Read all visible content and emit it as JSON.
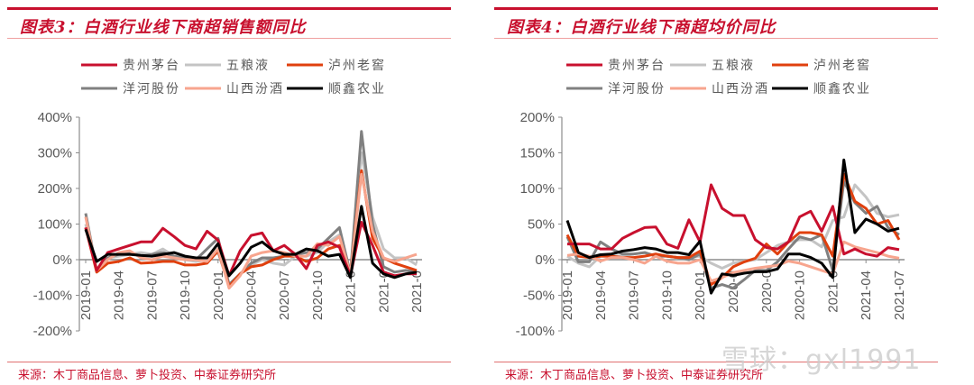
{
  "legend_labels": [
    "贵州茅台",
    "五粮液",
    "泸州老窖",
    "洋河股份",
    "山西汾酒",
    "顺鑫农业"
  ],
  "series_colors": {
    "贵州茅台": "#c8102e",
    "五粮液": "#c4c4c4",
    "泸州老窖": "#e0400e",
    "洋河股份": "#808080",
    "山西汾酒": "#f7a58e",
    "顺鑫农业": "#000000"
  },
  "watermark": "雪球：gxl1991",
  "chart_data": [
    {
      "type": "line",
      "title": "图表3：白酒行业线下商超销售额同比",
      "source": "来源：木丁商品信息、萝卜投资、中泰证券研究所",
      "x_range": [
        "2019-01",
        "2021-07"
      ],
      "x_ticks": [
        "2019-01",
        "2019-04",
        "2019-07",
        "2019-10",
        "2020-01",
        "2020-04",
        "2020-07",
        "2020-10",
        "2021-0",
        "2021-0",
        "2021-0"
      ],
      "ylim": [
        -200,
        400
      ],
      "y_ticks": [
        "400%",
        "300%",
        "200%",
        "100%",
        "0%",
        "-100%",
        "-200%"
      ],
      "y_tick_values": [
        400,
        300,
        200,
        100,
        0,
        -100,
        -200
      ],
      "legend": "top",
      "grid": false,
      "series": [
        {
          "name": "五粮液",
          "values": [
            100,
            -35,
            5,
            10,
            15,
            20,
            15,
            30,
            10,
            0,
            -5,
            0,
            20,
            -70,
            -40,
            -15,
            0,
            -10,
            -15,
            10,
            10,
            20,
            50,
            70,
            -45,
            300,
            120,
            30,
            5,
            5,
            -15
          ]
        },
        {
          "name": "洋河股份",
          "values": [
            130,
            -30,
            5,
            15,
            20,
            10,
            15,
            20,
            10,
            5,
            0,
            30,
            60,
            -70,
            -40,
            -10,
            5,
            5,
            10,
            15,
            20,
            30,
            60,
            90,
            -40,
            360,
            100,
            -20,
            -35,
            -30,
            -35
          ]
        },
        {
          "name": "泸州老窖",
          "values": [
            90,
            -35,
            -10,
            -5,
            5,
            -10,
            -8,
            -5,
            -5,
            -15,
            -15,
            -10,
            25,
            -75,
            -40,
            -20,
            -15,
            0,
            10,
            10,
            -5,
            5,
            30,
            40,
            -40,
            250,
            60,
            5,
            -10,
            -20,
            -30
          ]
        },
        {
          "name": "山西汾酒",
          "values": [
            120,
            -30,
            0,
            20,
            25,
            5,
            0,
            10,
            5,
            0,
            0,
            -5,
            30,
            -80,
            -45,
            10,
            20,
            25,
            20,
            10,
            10,
            45,
            40,
            65,
            -40,
            240,
            80,
            5,
            -5,
            5,
            15
          ]
        },
        {
          "name": "贵州茅台",
          "values": [
            90,
            -30,
            20,
            30,
            40,
            50,
            50,
            88,
            65,
            40,
            30,
            80,
            55,
            -45,
            25,
            68,
            75,
            25,
            40,
            15,
            -25,
            40,
            50,
            35,
            -45,
            105,
            40,
            -35,
            -45,
            -40,
            -40
          ]
        },
        {
          "name": "顺鑫农业",
          "values": [
            85,
            -5,
            15,
            15,
            15,
            12,
            10,
            15,
            20,
            10,
            5,
            5,
            45,
            -45,
            -10,
            35,
            50,
            25,
            15,
            15,
            30,
            25,
            10,
            15,
            -50,
            150,
            -10,
            -40,
            -50,
            -40,
            -35
          ]
        }
      ]
    },
    {
      "type": "line",
      "title": "图表4：白酒行业线下商超均价同比",
      "source": "来源：木丁商品信息、萝卜投资、中泰证券研究所",
      "x_range": [
        "2019-01",
        "2021-07"
      ],
      "x_ticks": [
        "2019-01",
        "2019-04",
        "2019-07",
        "2019-10",
        "2020-01",
        "2020-0",
        "2020-0",
        "2020-10",
        "2021-0",
        "2021-04",
        "2021-07"
      ],
      "ylim": [
        -100,
        200
      ],
      "y_ticks": [
        "200%",
        "150%",
        "100%",
        "50%",
        "0%",
        "-50%",
        "-100%"
      ],
      "y_tick_values": [
        200,
        150,
        100,
        50,
        0,
        -50,
        -100
      ],
      "legend": "top",
      "grid": false,
      "series": [
        {
          "name": "五粮液",
          "values": [
            5,
            -5,
            -10,
            5,
            5,
            5,
            8,
            10,
            5,
            5,
            3,
            3,
            5,
            -5,
            -12,
            -5,
            -2,
            0,
            10,
            20,
            25,
            28,
            28,
            18,
            55,
            60,
            105,
            88,
            65,
            60,
            63
          ]
        },
        {
          "name": "洋河股份",
          "values": [
            32,
            -3,
            -3,
            25,
            15,
            8,
            8,
            10,
            5,
            5,
            3,
            0,
            8,
            -40,
            -35,
            -40,
            -28,
            -15,
            -15,
            -3,
            15,
            32,
            28,
            35,
            -15,
            110,
            80,
            65,
            75,
            45,
            35
          ]
        },
        {
          "name": "泸州老窖",
          "values": [
            35,
            5,
            3,
            5,
            5,
            3,
            3,
            5,
            8,
            5,
            3,
            3,
            12,
            -35,
            -25,
            -10,
            -3,
            2,
            22,
            8,
            25,
            38,
            38,
            35,
            5,
            120,
            82,
            72,
            50,
            55,
            28
          ]
        },
        {
          "name": "山西汾酒",
          "values": [
            6,
            8,
            5,
            -2,
            3,
            3,
            0,
            -5,
            5,
            -2,
            -5,
            -5,
            0,
            -30,
            -25,
            -18,
            -15,
            -12,
            -10,
            -8,
            -2,
            -5,
            -10,
            -15,
            -20,
            25,
            18,
            14,
            10,
            5,
            2
          ]
        },
        {
          "name": "贵州茅台",
          "values": [
            22,
            22,
            22,
            15,
            15,
            30,
            38,
            45,
            46,
            22,
            16,
            56,
            25,
            105,
            72,
            62,
            62,
            28,
            17,
            15,
            25,
            60,
            68,
            40,
            75,
            8,
            15,
            8,
            5,
            17,
            14
          ]
        },
        {
          "name": "顺鑫农业",
          "values": [
            55,
            10,
            3,
            7,
            8,
            12,
            14,
            17,
            15,
            10,
            10,
            7,
            26,
            -47,
            -20,
            -22,
            -19,
            -17,
            -17,
            -13,
            8,
            8,
            3,
            -5,
            -25,
            140,
            38,
            57,
            50,
            40,
            44
          ]
        }
      ]
    }
  ]
}
